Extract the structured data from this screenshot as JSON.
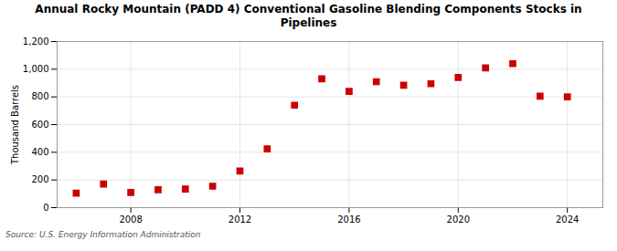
{
  "chart_data": {
    "type": "scatter",
    "title": "Annual Rocky Mountain (PADD 4) Conventional Gasoline Blending Components Stocks in\nPipelines",
    "ylabel": "Thousand Barrels",
    "source": "Source: U.S. Energy Information Administration",
    "x": [
      2006,
      2007,
      2008,
      2009,
      2010,
      2011,
      2012,
      2013,
      2014,
      2015,
      2016,
      2017,
      2018,
      2019,
      2020,
      2021,
      2022,
      2023,
      2024
    ],
    "values": [
      105,
      170,
      110,
      130,
      135,
      155,
      265,
      425,
      740,
      930,
      840,
      910,
      885,
      895,
      940,
      1010,
      1040,
      805,
      800
    ],
    "color": "#cc0000",
    "marker": "square",
    "grid": true,
    "xlim": [
      2005.3,
      2025.3
    ],
    "xticks": [
      2008,
      2012,
      2016,
      2020,
      2024
    ],
    "ylim": [
      0,
      1200
    ],
    "yticks": [
      0,
      200,
      400,
      600,
      800,
      {
        "value": 1000,
        "label": "1,000"
      },
      {
        "value": 1200,
        "label": "1,200"
      }
    ]
  }
}
